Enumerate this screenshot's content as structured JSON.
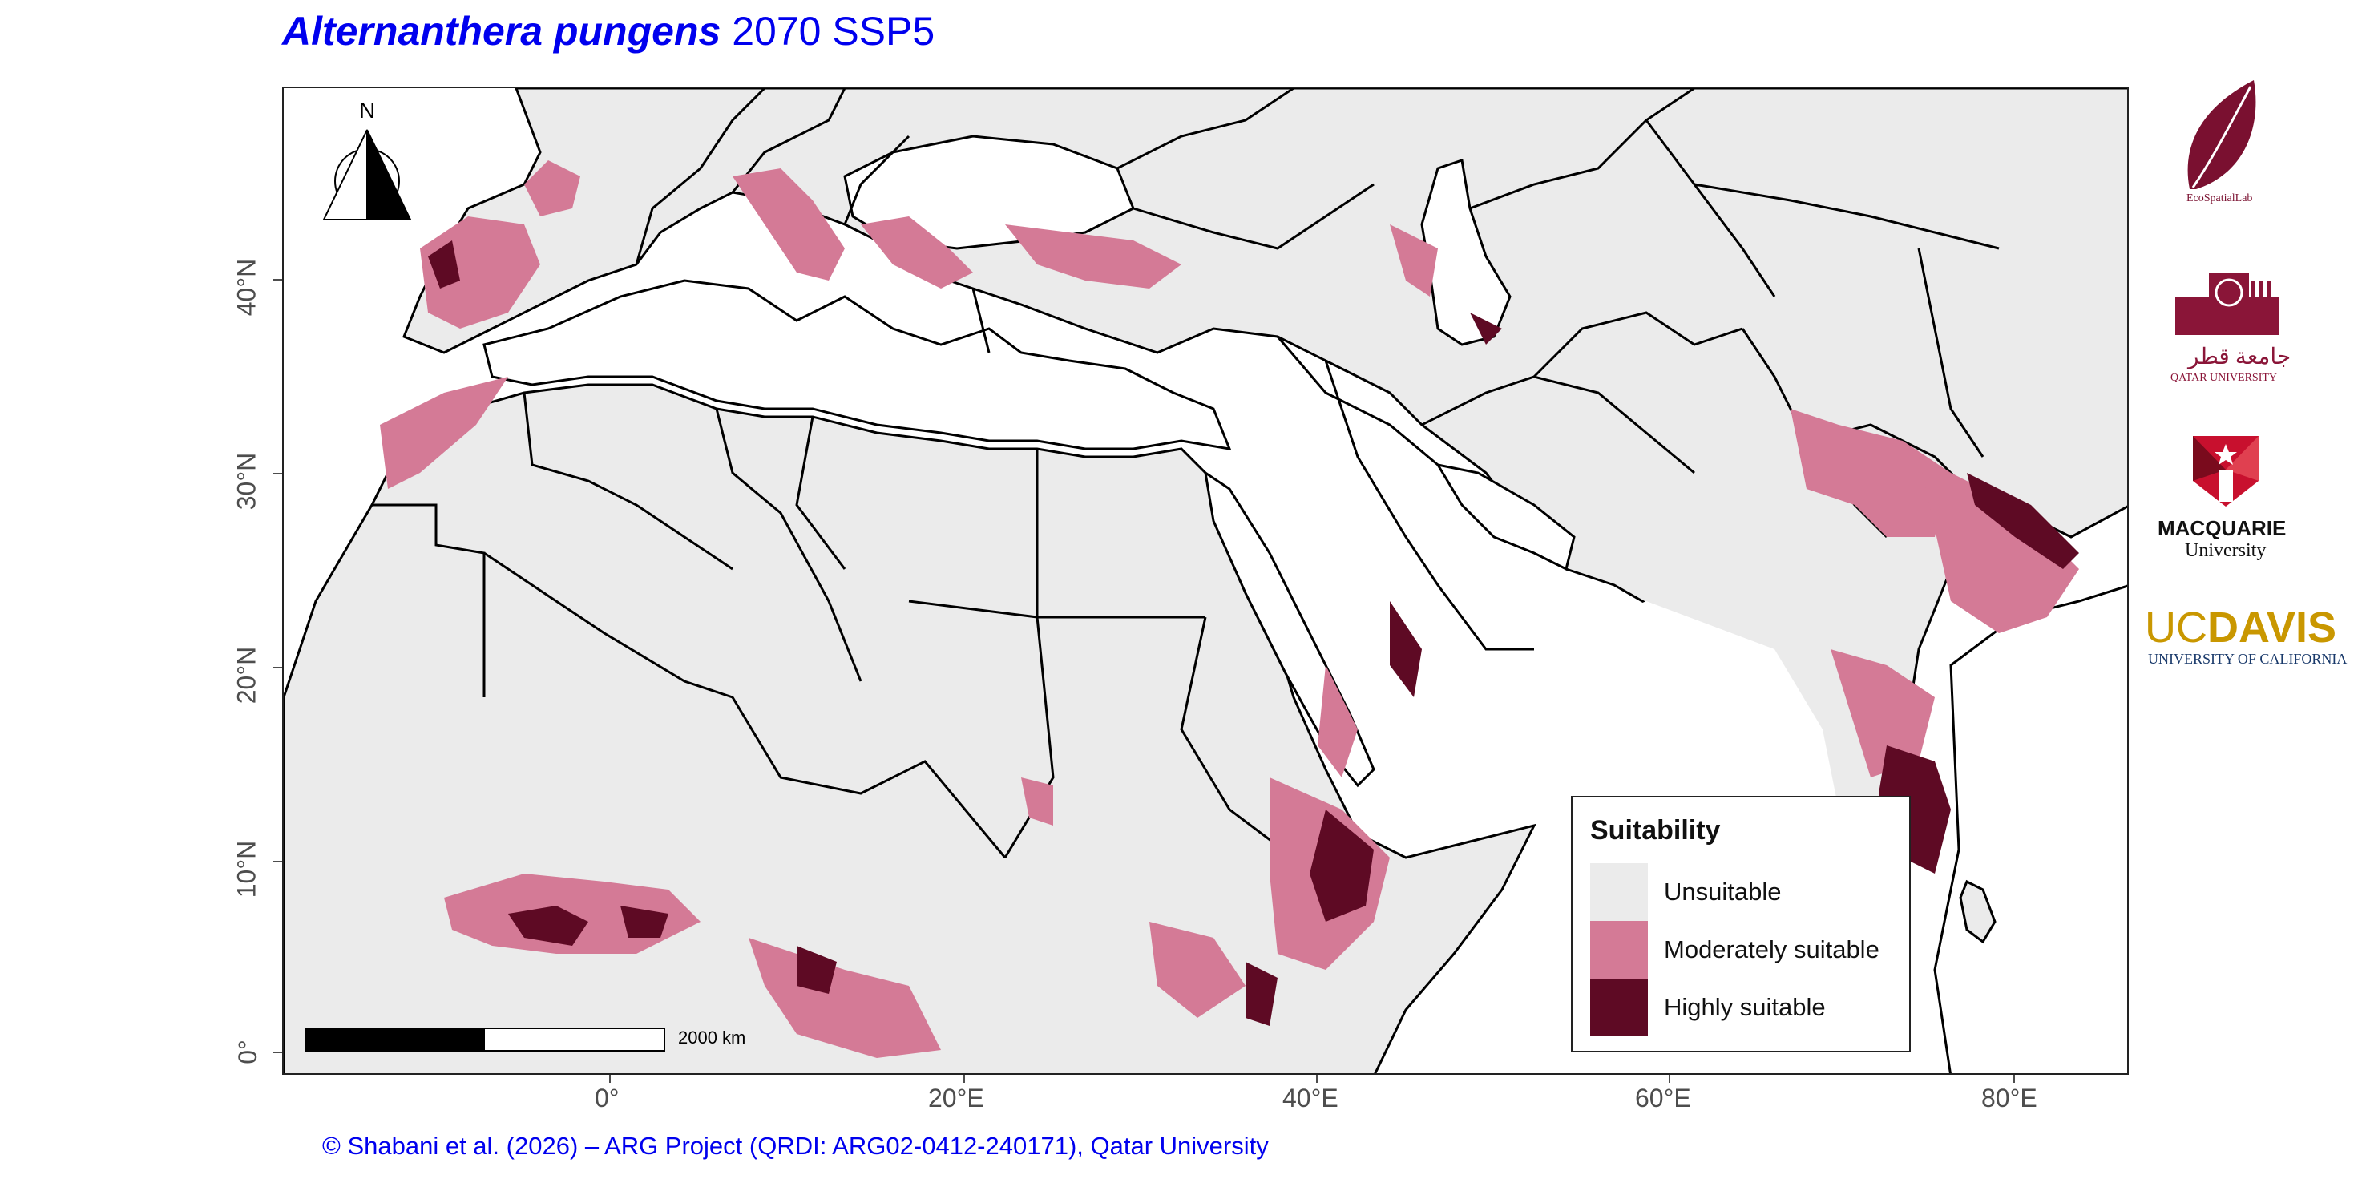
{
  "title": {
    "species": "Alternanthera pungens",
    "scenario": "2070 SSP5"
  },
  "axes": {
    "x_ticks": [
      "0°",
      "20°E",
      "40°E",
      "60°E",
      "80°E"
    ],
    "y_ticks": [
      "0°",
      "10°N",
      "20°N",
      "30°N",
      "40°N"
    ]
  },
  "north_arrow": {
    "label": "N"
  },
  "scalebar": {
    "label": "2000 km"
  },
  "legend": {
    "title": "Suitability",
    "items": [
      {
        "label": "Unsuitable",
        "color": "#ebebeb"
      },
      {
        "label": "Moderately suitable",
        "color": "#d47a96"
      },
      {
        "label": "Highly suitable",
        "color": "#5e0a24"
      }
    ]
  },
  "credit": "© Shabani et al. (2026) – ARG Project (QRDI: ARG02-0412-240171), Qatar University",
  "logos": {
    "ecospatial": {
      "name": "EcoSpatialLab",
      "color": "#7a1030"
    },
    "qatar": {
      "arabic": "جامعة قطر",
      "name": "QATAR UNIVERSITY",
      "color": "#8a1538"
    },
    "macquarie": {
      "name": "MACQUARIE",
      "sub": "University",
      "color": "#c8102e"
    },
    "ucdavis": {
      "name_uc": "UC",
      "name_davis": "DAVIS",
      "sub": "UNIVERSITY OF CALIFORNIA",
      "color": "#c99700",
      "sub_color": "#1a3a6b"
    }
  },
  "colors": {
    "land": "#ebebeb",
    "sea": "#ffffff",
    "moderate": "#d47a96",
    "high": "#5e0a24",
    "title": "#0000ee"
  }
}
